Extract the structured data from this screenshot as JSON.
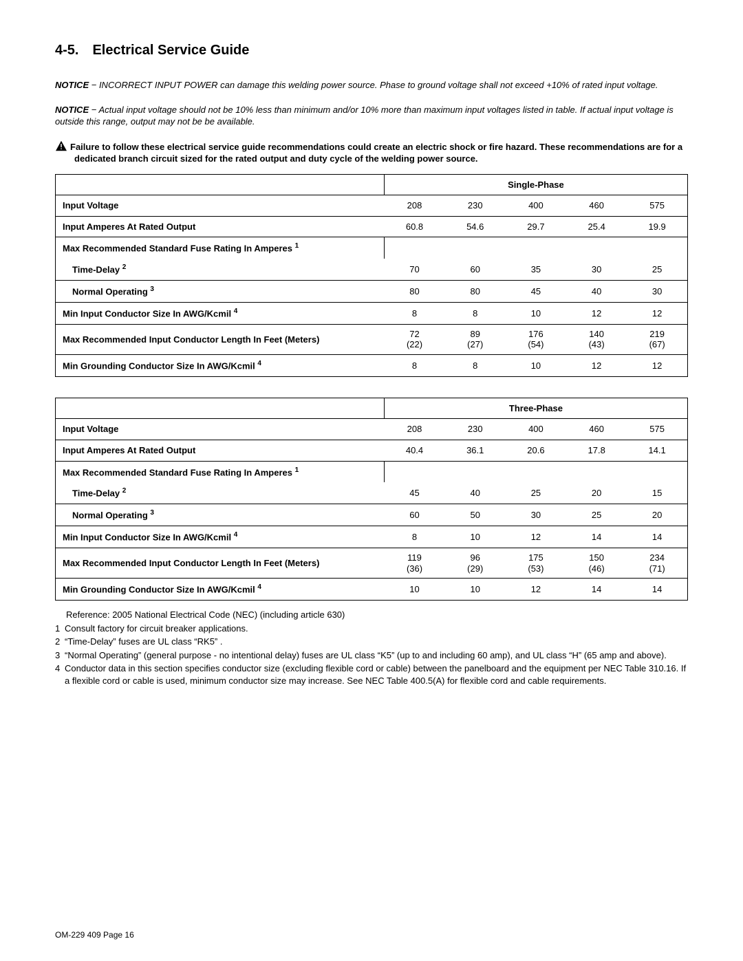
{
  "heading": "4-5. Electrical Service Guide",
  "notice1_lead": "NOTICE",
  "notice1_body": " − INCORRECT INPUT POWER can damage this welding power source. Phase to ground voltage shall not exceed +10% of rated input voltage.",
  "notice2_lead": "NOTICE",
  "notice2_body": " − Actual input voltage should not be 10% less than minimum and/or 10% more than maximum input voltages listed in table. If actual input voltage is outside this range, output may not be be available.",
  "warning": "Failure to follow these electrical service guide recommendations could create an electric shock or fire hazard. These recommendations are for a dedicated branch circuit sized for the rated output and duty cycle of the welding power source.",
  "table1": {
    "phase_label": "Single-Phase",
    "rows": {
      "input_voltage_label": "Input Voltage",
      "input_voltage": [
        "208",
        "230",
        "400",
        "460",
        "575"
      ],
      "input_amperes_label": "Input Amperes At Rated Output",
      "input_amperes": [
        "60.8",
        "54.6",
        "29.7",
        "25.4",
        "19.9"
      ],
      "fuse_section_label": "Max Recommended Standard Fuse Rating In Amperes ",
      "fuse_section_sup": "1",
      "time_delay_label": "Time-Delay ",
      "time_delay_sup": "2",
      "time_delay": [
        "70",
        "60",
        "35",
        "30",
        "25"
      ],
      "normal_op_label": "Normal Operating ",
      "normal_op_sup": "3",
      "normal_op": [
        "80",
        "80",
        "45",
        "40",
        "30"
      ],
      "min_cond_label": "Min Input Conductor Size In AWG/Kcmil ",
      "min_cond_sup": "4",
      "min_cond": [
        "8",
        "8",
        "10",
        "12",
        "12"
      ],
      "max_len_label": "Max Recommended Input Conductor Length In Feet (Meters)",
      "max_len": [
        "72\n(22)",
        "89\n(27)",
        "176\n(54)",
        "140\n(43)",
        "219\n(67)"
      ],
      "min_ground_label": "Min Grounding Conductor Size In AWG/Kcmil ",
      "min_ground_sup": "4",
      "min_ground": [
        "8",
        "8",
        "10",
        "12",
        "12"
      ]
    }
  },
  "table2": {
    "phase_label": "Three-Phase",
    "rows": {
      "input_voltage_label": "Input Voltage",
      "input_voltage": [
        "208",
        "230",
        "400",
        "460",
        "575"
      ],
      "input_amperes_label": "Input Amperes At Rated Output",
      "input_amperes": [
        "40.4",
        "36.1",
        "20.6",
        "17.8",
        "14.1"
      ],
      "fuse_section_label": "Max Recommended Standard Fuse Rating In Amperes ",
      "fuse_section_sup": "1",
      "time_delay_label": "Time-Delay ",
      "time_delay_sup": "2",
      "time_delay": [
        "45",
        "40",
        "25",
        "20",
        "15"
      ],
      "normal_op_label": "Normal Operating ",
      "normal_op_sup": "3",
      "normal_op": [
        "60",
        "50",
        "30",
        "25",
        "20"
      ],
      "min_cond_label": "Min Input Conductor Size In AWG/Kcmil ",
      "min_cond_sup": "4",
      "min_cond": [
        "8",
        "10",
        "12",
        "14",
        "14"
      ],
      "max_len_label": "Max Recommended Input Conductor Length In Feet (Meters)",
      "max_len": [
        "119\n(36)",
        "96\n(29)",
        "175\n(53)",
        "150\n(46)",
        "234\n(71)"
      ],
      "min_ground_label": "Min Grounding Conductor Size In AWG/Kcmil ",
      "min_ground_sup": "4",
      "min_ground": [
        "10",
        "10",
        "12",
        "14",
        "14"
      ]
    }
  },
  "footnotes": {
    "reference": "Reference: 2005 National Electrical Code (NEC) (including article 630)",
    "fn1_num": "1",
    "fn1": "Consult factory for circuit breaker applications.",
    "fn2_num": "2",
    "fn2": "“Time-Delay” fuses are UL class “RK5” .",
    "fn3_num": "3",
    "fn3": "“Normal Operating” (general purpose - no intentional delay) fuses are UL class “K5” (up to and including 60 amp), and UL class “H” (65 amp and above).",
    "fn4_num": "4",
    "fn4": "Conductor data in this section specifies conductor size (excluding flexible cord or cable) between the panelboard and the equipment per NEC Table 310.16. If a flexible cord or cable is used, minimum conductor size may increase. See NEC Table 400.5(A) for flexible cord and cable requirements."
  },
  "footer": "OM-229 409 Page 16"
}
